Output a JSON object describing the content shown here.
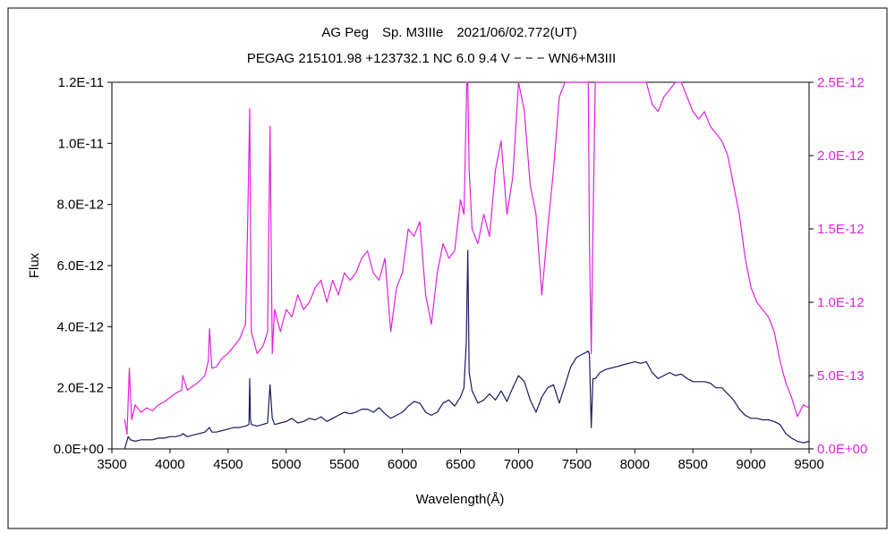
{
  "title_line1": "AG Peg　Sp. M3IIIe　2021/06/02.772(UT)",
  "title_line2": "PEGAG 215101.98 +123732.1 NC 6.0 9.4 V − − − WN6+M3III",
  "chart_data": {
    "type": "line",
    "title": "AG Peg　Sp. M3IIIe　2021/06/02.772(UT)",
    "subtitle": "PEGAG 215101.98 +123732.1 NC 6.0 9.4 V − − − WN6+M3III",
    "xlabel": "Wavelength(Å)",
    "ylabel": "Flux",
    "xlim": [
      3500,
      9500
    ],
    "ylim": [
      0,
      1.2e-11
    ],
    "y2lim": [
      0,
      2.5e-12
    ],
    "x_ticks": [
      "3500",
      "4000",
      "4500",
      "5000",
      "5500",
      "6000",
      "6500",
      "7000",
      "7500",
      "8000",
      "8500",
      "9000",
      "9500"
    ],
    "y_ticks": [
      "0.0E+00",
      "2.0E-12",
      "4.0E-12",
      "6.0E-12",
      "8.0E-12",
      "1.0E-11",
      "1.2E-11"
    ],
    "y2_ticks": [
      "0.0E+00",
      "5.0E-13",
      "1.0E-12",
      "1.5E-12",
      "2.0E-12",
      "2.5E-12"
    ],
    "grid": false,
    "series": [
      {
        "axis": "left",
        "color": "#1a1a5e",
        "x": [
          3610,
          3640,
          3660,
          3700,
          3750,
          3800,
          3850,
          3900,
          3950,
          4000,
          4050,
          4100,
          4110,
          4150,
          4200,
          4250,
          4300,
          4340,
          4360,
          4400,
          4450,
          4500,
          4550,
          4600,
          4650,
          4680,
          4686,
          4692,
          4700,
          4750,
          4800,
          4840,
          4861,
          4880,
          4900,
          4950,
          5000,
          5050,
          5100,
          5150,
          5200,
          5250,
          5300,
          5350,
          5400,
          5450,
          5500,
          5550,
          5600,
          5650,
          5700,
          5750,
          5800,
          5850,
          5900,
          5950,
          6000,
          6050,
          6100,
          6150,
          6200,
          6250,
          6300,
          6350,
          6400,
          6450,
          6500,
          6530,
          6550,
          6563,
          6575,
          6600,
          6650,
          6700,
          6750,
          6800,
          6850,
          6900,
          6950,
          7000,
          7050,
          7100,
          7150,
          7200,
          7250,
          7300,
          7350,
          7400,
          7450,
          7500,
          7550,
          7600,
          7610,
          7625,
          7640,
          7660,
          7700,
          7750,
          7800,
          7850,
          7900,
          7950,
          8000,
          8050,
          8100,
          8150,
          8200,
          8250,
          8300,
          8350,
          8400,
          8450,
          8500,
          8550,
          8600,
          8650,
          8700,
          8750,
          8800,
          8850,
          8900,
          8950,
          9000,
          9050,
          9100,
          9150,
          9200,
          9250,
          9300,
          9350,
          9400,
          9450,
          9500
        ],
        "y": [
          0.0,
          4e-13,
          3e-13,
          2.5e-13,
          3e-13,
          3e-13,
          3e-13,
          3.5e-13,
          3.5e-13,
          4e-13,
          4e-13,
          4.5e-13,
          5e-13,
          4e-13,
          4.5e-13,
          5e-13,
          5.5e-13,
          7e-13,
          5.5e-13,
          5.5e-13,
          6e-13,
          6.5e-13,
          7e-13,
          7e-13,
          7.5e-13,
          8e-13,
          2.3e-12,
          1e-12,
          8e-13,
          7.5e-13,
          8e-13,
          8.5e-13,
          2.1e-12,
          1e-12,
          8e-13,
          8.5e-13,
          9e-13,
          1e-12,
          8.5e-13,
          9e-13,
          1e-12,
          9.5e-13,
          1.05e-12,
          9e-13,
          1e-12,
          1.1e-12,
          1.2e-12,
          1.15e-12,
          1.2e-12,
          1.3e-12,
          1.3e-12,
          1.2e-12,
          1.35e-12,
          1.15e-12,
          1e-12,
          1.1e-12,
          1.2e-12,
          1.4e-12,
          1.55e-12,
          1.5e-12,
          1.2e-12,
          1.1e-12,
          1.2e-12,
          1.5e-12,
          1.6e-12,
          1.4e-12,
          1.7e-12,
          2e-12,
          3.5e-12,
          6.5e-12,
          2.5e-12,
          1.9e-12,
          1.5e-12,
          1.6e-12,
          1.8e-12,
          1.6e-12,
          1.9e-12,
          1.55e-12,
          2e-12,
          2.4e-12,
          2.2e-12,
          1.6e-12,
          1.2e-12,
          1.7e-12,
          2e-12,
          2.1e-12,
          1.5e-12,
          2.1e-12,
          2.7e-12,
          3e-12,
          3.1e-12,
          3.2e-12,
          3.1e-12,
          7e-13,
          2.3e-12,
          2.3e-12,
          2.5e-12,
          2.6e-12,
          2.65e-12,
          2.7e-12,
          2.75e-12,
          2.8e-12,
          2.85e-12,
          2.8e-12,
          2.85e-12,
          2.5e-12,
          2.3e-12,
          2.4e-12,
          2.5e-12,
          2.4e-12,
          2.45e-12,
          2.3e-12,
          2.2e-12,
          2.2e-12,
          2.2e-12,
          2.15e-12,
          2e-12,
          2e-12,
          1.8e-12,
          1.6e-12,
          1.3e-12,
          1.1e-12,
          1e-12,
          1e-12,
          9.5e-13,
          9.5e-13,
          9e-13,
          8e-13,
          5e-13,
          3.5e-13,
          2.5e-13,
          2e-13,
          2.5e-13
        ]
      },
      {
        "axis": "right",
        "color": "#dd22dd",
        "x": [
          3610,
          3630,
          3650,
          3670,
          3700,
          3750,
          3800,
          3850,
          3900,
          3950,
          4000,
          4050,
          4100,
          4110,
          4150,
          4200,
          4250,
          4300,
          4330,
          4340,
          4360,
          4400,
          4450,
          4500,
          4550,
          4600,
          4650,
          4670,
          4686,
          4700,
          4750,
          4800,
          4840,
          4861,
          4880,
          4900,
          4950,
          5000,
          5050,
          5100,
          5150,
          5200,
          5250,
          5300,
          5350,
          5400,
          5450,
          5500,
          5550,
          5600,
          5650,
          5700,
          5750,
          5800,
          5850,
          5900,
          5950,
          6000,
          6050,
          6100,
          6150,
          6200,
          6250,
          6300,
          6350,
          6400,
          6450,
          6500,
          6530,
          6555,
          6563,
          6575,
          6600,
          6650,
          6700,
          6750,
          6800,
          6850,
          6900,
          6950,
          7000,
          7050,
          7100,
          7150,
          7200,
          7250,
          7300,
          7350,
          7400,
          7450,
          7500,
          7550,
          7600,
          7610,
          7625,
          7640,
          7660,
          7700,
          7750,
          7800,
          7850,
          7900,
          7950,
          8000,
          8050,
          8100,
          8150,
          8200,
          8250,
          8300,
          8350,
          8400,
          8450,
          8500,
          8550,
          8600,
          8650,
          8700,
          8750,
          8800,
          8850,
          8900,
          8950,
          9000,
          9050,
          9100,
          9150,
          9200,
          9250,
          9300,
          9350,
          9400,
          9450,
          9500
        ],
        "y": [
          2e-13,
          1e-13,
          5.5e-13,
          2e-13,
          3e-13,
          2.5e-13,
          2.8e-13,
          2.6e-13,
          3e-13,
          3.2e-13,
          3.5e-13,
          3.8e-13,
          4e-13,
          5e-13,
          4e-13,
          4.3e-13,
          4.6e-13,
          5e-13,
          6e-13,
          8.2e-13,
          5.5e-13,
          5.6e-13,
          6.2e-13,
          6.5e-13,
          7e-13,
          7.5e-13,
          8.5e-13,
          1.6e-12,
          2.32e-12,
          8e-13,
          6.5e-13,
          7e-13,
          8e-13,
          2.2e-12,
          6.5e-13,
          9.5e-13,
          8e-13,
          9.5e-13,
          9e-13,
          1.05e-12,
          9.5e-13,
          1e-12,
          1.1e-12,
          1.15e-12,
          1e-12,
          1.15e-12,
          1.05e-12,
          1.2e-12,
          1.15e-12,
          1.2e-12,
          1.3e-12,
          1.35e-12,
          1.2e-12,
          1.15e-12,
          1.3e-12,
          8e-13,
          1.1e-12,
          1.2e-12,
          1.5e-12,
          1.45e-12,
          1.55e-12,
          1.05e-12,
          8.5e-13,
          1.2e-12,
          1.4e-12,
          1.3e-12,
          1.35e-12,
          1.7e-12,
          1.6e-12,
          2.5e-12,
          2.5e-12,
          1.9e-12,
          1.5e-12,
          1.4e-12,
          1.6e-12,
          1.45e-12,
          1.9e-12,
          2.1e-12,
          1.6e-12,
          1.85e-12,
          2.5e-12,
          2.3e-12,
          1.8e-12,
          1.6e-12,
          1.05e-12,
          1.5e-12,
          1.9e-12,
          2.4e-12,
          2.5e-12,
          2.5e-12,
          2.5e-12,
          2.5e-12,
          2.5e-12,
          1.4e-12,
          6.5e-13,
          1.5e-12,
          2.5e-12,
          2.5e-12,
          2.5e-12,
          2.5e-12,
          2.5e-12,
          2.5e-12,
          2.5e-12,
          2.5e-12,
          2.5e-12,
          2.5e-12,
          2.35e-12,
          2.3e-12,
          2.4e-12,
          2.45e-12,
          2.5e-12,
          2.5e-12,
          2.4e-12,
          2.3e-12,
          2.25e-12,
          2.3e-12,
          2.2e-12,
          2.15e-12,
          2.1e-12,
          2e-12,
          1.8e-12,
          1.6e-12,
          1.3e-12,
          1.1e-12,
          1e-12,
          9.5e-13,
          9e-13,
          8e-13,
          6e-13,
          4.5e-13,
          3.5e-13,
          2.2e-13,
          3e-13,
          2.8e-13
        ]
      }
    ]
  }
}
